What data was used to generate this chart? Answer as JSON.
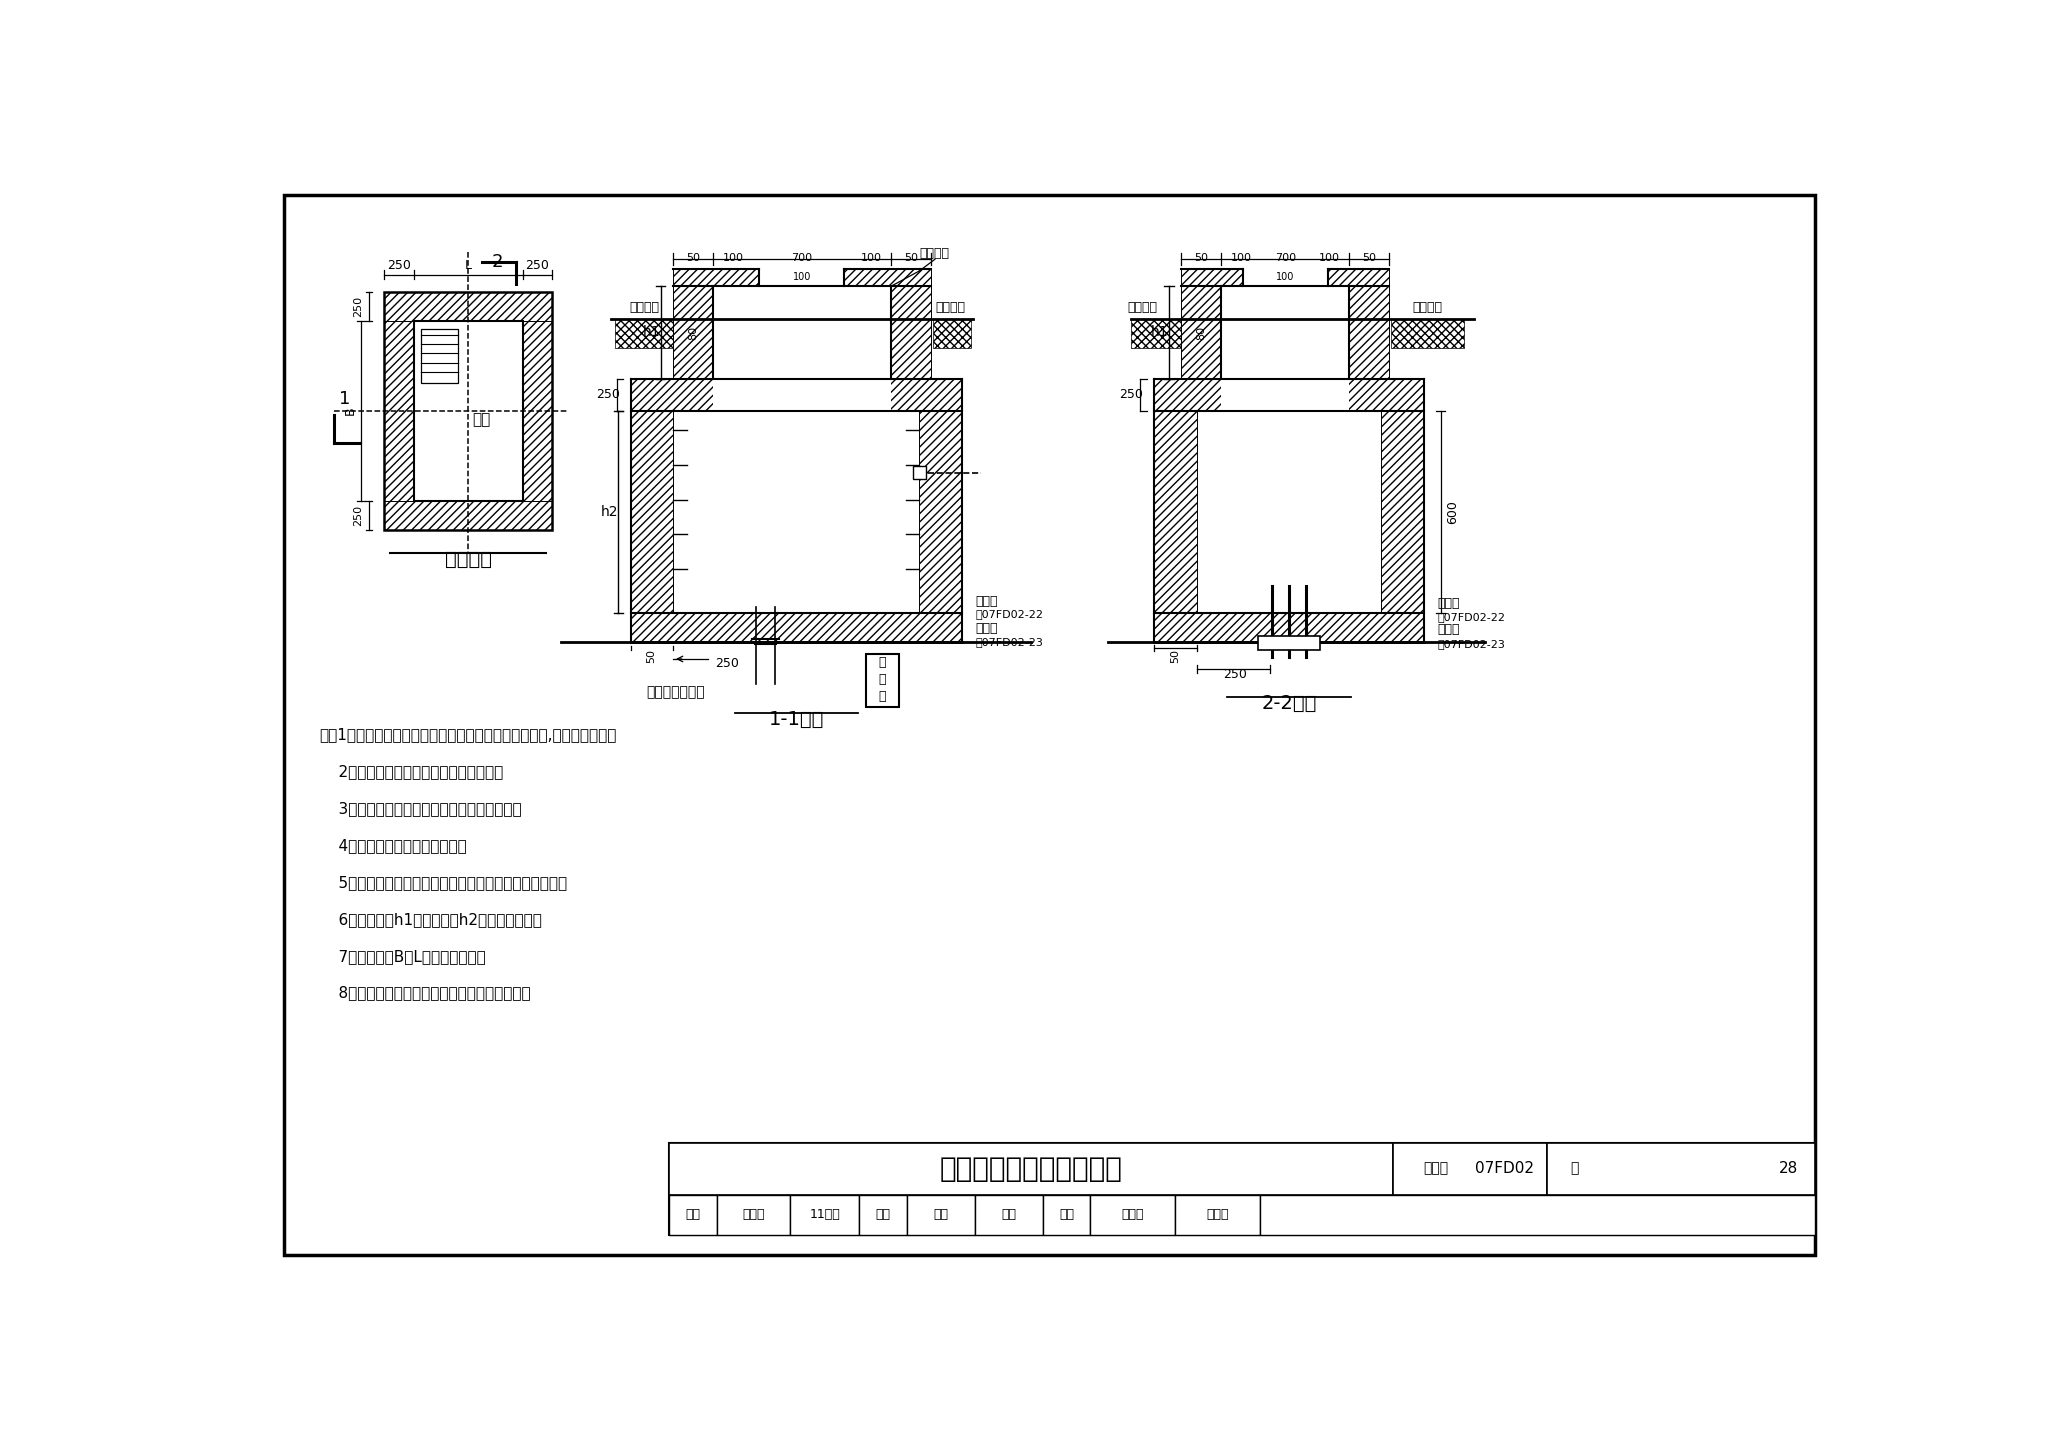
{
  "bg": "#ffffff",
  "title": "电缆防爆波井做法（一）",
  "fig_no": "07FD02",
  "page": "28",
  "plan_label": "甲型平面",
  "sec1_label": "1-1断面",
  "sec2_label": "2-2断面",
  "shaft_cover": "架式井盖",
  "ground_l": "室外地坪",
  "underground_l": "防空地下室室内",
  "climb_l": "爺梯",
  "box_l": [
    "配",
    "电",
    "箱"
  ],
  "resist_l": "抗力片",
  "see1": "见07FD02-22",
  "close_rib": "密闭助",
  "see2": "见07FD02-23",
  "notes": [
    "注：1．预埋管的位置、规格、数量由单项工程设计确定,本图仅为示意。",
    "    2．电缆应在电缆井中盘一圈作为余量。",
    "    3．电缆井进线方向、位置由具体工程确定。",
    "    4．电缆井战时用粗中沙填满。",
    "    5．电缆井的防护等级应与人防工程主体防护等级一致。",
    "    6．井脖高度h1、井腔高度h2由设计人确定。",
    "    7．井腔宽度B、L由设计人确定。",
    "    8．甲型电缆防爆波井设在防空地下室的上方。"
  ],
  "tb_review": "审核",
  "tb_reviewer": "杨继讯",
  "tb_sig1": "11伾仿",
  "tb_check": "校对",
  "tb_checker": "罗浩",
  "tb_sig2": "罗孔",
  "tb_design": "设计",
  "tb_designer": "张红英",
  "tb_sig3": "张红英",
  "tb_atlas_l": "图集号",
  "tb_page_l": "页"
}
